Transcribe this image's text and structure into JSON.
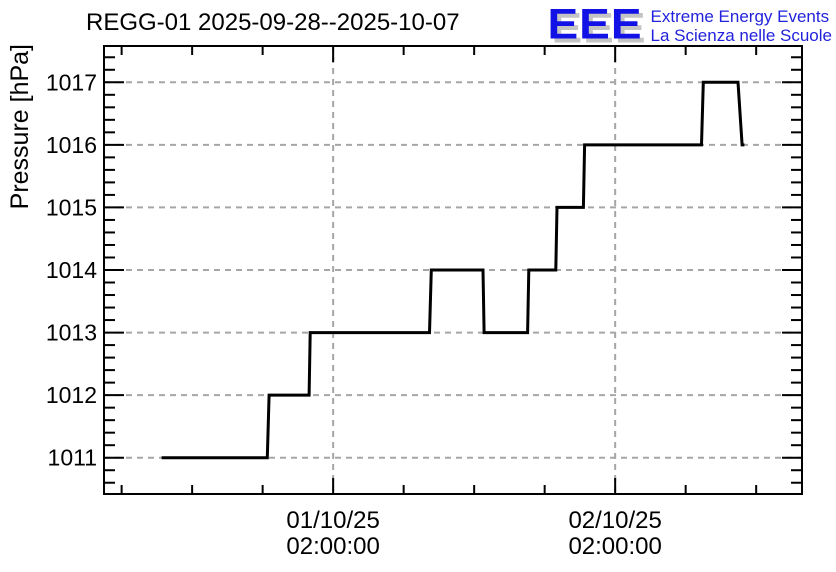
{
  "header": {
    "title": "REGG-01 2025-09-28--2025-10-07"
  },
  "logo": {
    "acronym": "EEE",
    "line1": "Extreme Energy Events",
    "line2": "La Scienza nelle Scuole",
    "text_color": "#2222dd",
    "acronym_color": "#1212e6",
    "shadow_color": "#c4c4c4"
  },
  "chart_data": {
    "type": "line",
    "style": "steps",
    "title": "REGG-01 2025-09-28--2025-10-07",
    "xlabel": "",
    "ylabel": "Pressure [hPa]",
    "line_color": "#000000",
    "frame_color": "#000000",
    "grid": true,
    "grid_color": "#a6a6a6",
    "grid_style": "dashed",
    "legend": "none",
    "x_axis": {
      "unit": "hours relative to first labeled tick (01/10/25 02:00:00)",
      "range_hours": [
        -19.5,
        39.9
      ],
      "minor_tick_interval_hours": 6,
      "major_tick_interval_hours": 24,
      "major_ticks": [
        {
          "t": 0,
          "label_line1": "01/10/25",
          "label_line2": "02:00:00"
        },
        {
          "t": 24,
          "label_line1": "02/10/25",
          "label_line2": "02:00:00"
        }
      ]
    },
    "y_axis": {
      "range": [
        1010.42,
        1017.58
      ],
      "major_ticks": [
        1011,
        1012,
        1013,
        1014,
        1015,
        1016,
        1017
      ],
      "minor_tick_interval": 0.2
    },
    "points_t_hours_vs_hpa": [
      [
        -14.6,
        1011
      ],
      [
        -5.6,
        1011
      ],
      [
        -5.45,
        1012
      ],
      [
        -2.05,
        1012
      ],
      [
        -1.95,
        1013
      ],
      [
        8.2,
        1013
      ],
      [
        8.35,
        1014
      ],
      [
        12.75,
        1014
      ],
      [
        12.85,
        1013
      ],
      [
        16.55,
        1013
      ],
      [
        16.65,
        1014
      ],
      [
        18.95,
        1014
      ],
      [
        19.05,
        1015
      ],
      [
        21.3,
        1015
      ],
      [
        21.4,
        1016
      ],
      [
        31.35,
        1016
      ],
      [
        31.5,
        1017
      ],
      [
        34.45,
        1017
      ],
      [
        34.8,
        1016
      ],
      [
        35.0,
        1016
      ]
    ]
  }
}
